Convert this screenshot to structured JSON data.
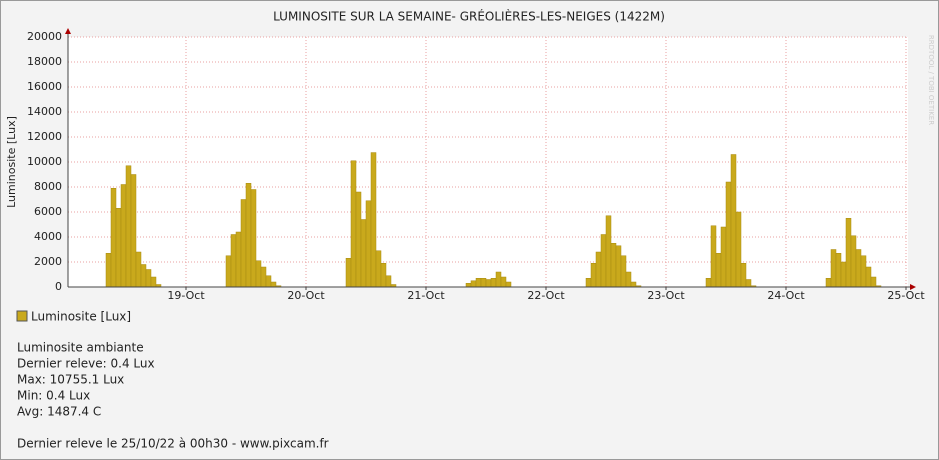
{
  "chart_data": {
    "type": "bar",
    "title": "LUMINOSITE SUR LA SEMAINE- GRÉOLIÈRES-LES-NEIGES (1422M)",
    "ylabel": "Luminosite [Lux]",
    "watermark": "RRDTOOL / TOBI OETIKER",
    "x": [
      8,
      9,
      10,
      11,
      12,
      13,
      14,
      15,
      16,
      17,
      18,
      32,
      33,
      34,
      35,
      36,
      37,
      38,
      39,
      40,
      41,
      42,
      56,
      57,
      58,
      59,
      60,
      61,
      62,
      63,
      64,
      65,
      80,
      81,
      82,
      83,
      84,
      85,
      86,
      87,
      88,
      104,
      105,
      106,
      107,
      108,
      109,
      110,
      111,
      112,
      113,
      114,
      128,
      129,
      130,
      131,
      132,
      133,
      134,
      135,
      136,
      137,
      152,
      153,
      154,
      155,
      156,
      157,
      158,
      159,
      160,
      161,
      162
    ],
    "series": [
      {
        "name": "Luminosite [Lux]",
        "color": "#c9a91c",
        "values": [
          2700,
          7900,
          6300,
          8200,
          9700,
          9000,
          2800,
          1800,
          1400,
          800,
          200,
          2500,
          4200,
          4400,
          7000,
          8300,
          7800,
          2100,
          1600,
          900,
          400,
          100,
          2300,
          10100,
          7600,
          5400,
          6900,
          10755.1,
          2900,
          1900,
          900,
          200,
          300,
          500,
          700,
          700,
          600,
          700,
          1200,
          800,
          400,
          700,
          1900,
          2800,
          4200,
          5700,
          3500,
          3300,
          2500,
          1200,
          400,
          100,
          700,
          4900,
          2700,
          4800,
          8400,
          10600,
          6000,
          1900,
          600,
          100,
          700,
          3000,
          2700,
          2000,
          5500,
          4100,
          3000,
          2500,
          1600,
          800,
          100
        ]
      }
    ],
    "xlim": [
      0.4,
      168.4
    ],
    "xticks": [
      {
        "value": 24,
        "label": "19-Oct"
      },
      {
        "value": 48,
        "label": "20-Oct"
      },
      {
        "value": 72,
        "label": "21-Oct"
      },
      {
        "value": 96,
        "label": "22-Oct"
      },
      {
        "value": 120,
        "label": "23-Oct"
      },
      {
        "value": 144,
        "label": "24-Oct"
      },
      {
        "value": 168,
        "label": "25-Oct"
      }
    ],
    "ylim": [
      0,
      20000
    ],
    "yticks": [
      0,
      2000,
      4000,
      6000,
      8000,
      10000,
      12000,
      14000,
      16000,
      18000,
      20000
    ],
    "grid": true,
    "info": [
      "Luminosite ambiante",
      "Dernier releve: 0.4 Lux",
      "Max: 10755.1 Lux",
      "Min: 0.4 Lux",
      "Avg: 1487.4 C"
    ],
    "footer": "Dernier releve le 25/10/22 à 00h30 - www.pixcam.fr"
  }
}
